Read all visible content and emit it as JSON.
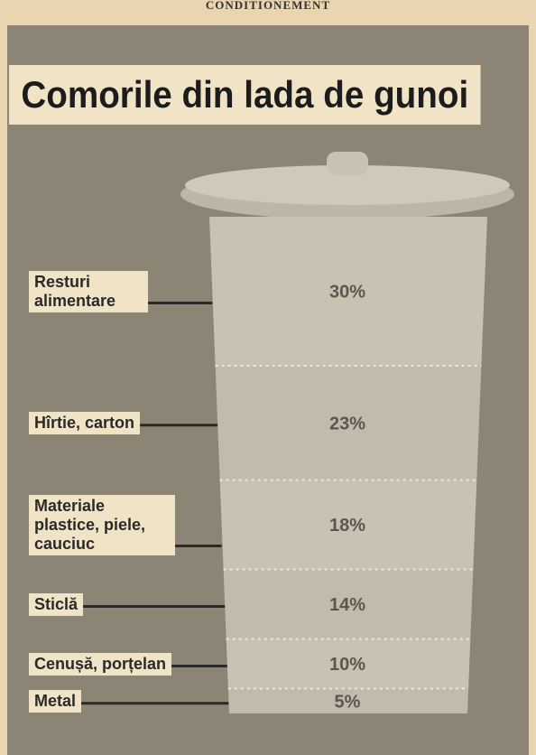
{
  "header": "CONDITIONEMENT",
  "chart_data": {
    "type": "bin",
    "title": "Comorile din lada de gunoi",
    "categories": [
      "Resturi alimentare",
      "Hîrtie, carton",
      "Materiale plastice, piele, cauciuc",
      "Sticlă",
      "Cenușă, porțelan",
      "Metal"
    ],
    "values": [
      30,
      23,
      18,
      14,
      10,
      5
    ],
    "value_labels": [
      "30%",
      "23%",
      "18%",
      "14%",
      "10%",
      "5%"
    ]
  }
}
